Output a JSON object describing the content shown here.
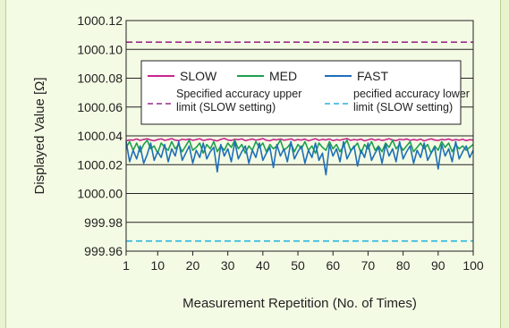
{
  "chart_data": {
    "type": "line",
    "xlabel": "Measurement Repetition (No. of Times)",
    "ylabel": "Displayed Value [Ω]",
    "xlim": [
      1,
      100
    ],
    "ylim": [
      999.96,
      1000.12
    ],
    "x_ticks": [
      1,
      10,
      20,
      30,
      40,
      50,
      60,
      70,
      80,
      90,
      100
    ],
    "y_ticks": [
      999.96,
      999.98,
      1000.0,
      1000.02,
      1000.04,
      1000.06,
      1000.08,
      1000.1,
      1000.12
    ],
    "y_tick_labels": [
      "999.96",
      "999.98",
      "1000.00",
      "1000.02",
      "1000.04",
      "1000.06",
      "1000.08",
      "1000.10",
      "1000.12"
    ],
    "grid": true,
    "legend_position": "top-right",
    "series": [
      {
        "name": "SLOW",
        "color": "#c8258f",
        "style": "solid",
        "values": [
          1000.0365,
          1000.0372,
          1000.037,
          1000.0378,
          1000.0368,
          1000.0375,
          1000.038,
          1000.0371,
          1000.0366,
          1000.0374,
          1000.0379,
          1000.0369,
          1000.0373,
          1000.0381,
          1000.037,
          1000.0367,
          1000.0376,
          1000.0372,
          1000.0378,
          1000.0369,
          1000.0374,
          1000.038,
          1000.0368,
          1000.0373,
          1000.0377,
          1000.037,
          1000.0365,
          1000.0375,
          1000.0382,
          1000.0371,
          1000.0368,
          1000.0376,
          1000.0373,
          1000.0379,
          1000.0367,
          1000.0372,
          1000.0378,
          1000.037,
          1000.0374,
          1000.0381,
          1000.0369,
          1000.0366,
          1000.0375,
          1000.0372,
          1000.0378,
          1000.037,
          1000.0373,
          1000.0379,
          1000.0368,
          1000.0374,
          1000.0371,
          1000.0377,
          1000.0366,
          1000.0373,
          1000.038,
          1000.0369,
          1000.0375,
          1000.0372,
          1000.0378,
          1000.0367,
          1000.0373,
          1000.037,
          1000.0376,
          1000.0381,
          1000.0369,
          1000.0374,
          1000.0371,
          1000.0377,
          1000.0366,
          1000.0372,
          1000.0379,
          1000.037,
          1000.0375,
          1000.0368,
          1000.0373,
          1000.038,
          1000.0371,
          1000.0367,
          1000.0376,
          1000.0372,
          1000.0378,
          1000.0369,
          1000.0374,
          1000.037,
          1000.0377,
          1000.0365,
          1000.0373,
          1000.0379,
          1000.0371,
          1000.0368,
          1000.0375,
          1000.0372,
          1000.0378,
          1000.0369,
          1000.0374,
          1000.037,
          1000.0376,
          1000.0367,
          1000.0373,
          1000.0371
        ]
      },
      {
        "name": "MED",
        "color": "#1f9e4f",
        "style": "solid",
        "values": [
          1000.032,
          1000.036,
          1000.03,
          1000.035,
          1000.029,
          1000.034,
          1000.037,
          1000.031,
          1000.033,
          1000.028,
          1000.035,
          1000.032,
          1000.03,
          1000.036,
          1000.031,
          1000.034,
          1000.029,
          1000.033,
          1000.037,
          1000.03,
          1000.032,
          1000.035,
          1000.028,
          1000.034,
          1000.031,
          1000.036,
          1000.029,
          1000.033,
          1000.03,
          1000.035,
          1000.032,
          1000.037,
          1000.031,
          1000.034,
          1000.028,
          1000.033,
          1000.03,
          1000.036,
          1000.032,
          1000.035,
          1000.029,
          1000.034,
          1000.031,
          1000.033,
          1000.037,
          1000.03,
          1000.032,
          1000.035,
          1000.029,
          1000.034,
          1000.031,
          1000.036,
          1000.03,
          1000.033,
          1000.028,
          1000.035,
          1000.032,
          1000.03,
          1000.036,
          1000.031,
          1000.034,
          1000.029,
          1000.033,
          1000.037,
          1000.03,
          1000.032,
          1000.035,
          1000.028,
          1000.034,
          1000.031,
          1000.036,
          1000.03,
          1000.033,
          1000.029,
          1000.035,
          1000.032,
          1000.037,
          1000.031,
          1000.034,
          1000.03,
          1000.033,
          1000.036,
          1000.029,
          1000.032,
          1000.035,
          1000.031,
          1000.034,
          1000.028,
          1000.033,
          1000.03,
          1000.036,
          1000.032,
          1000.035,
          1000.029,
          1000.034,
          1000.031,
          1000.033,
          1000.03,
          1000.032,
          1000.034
        ]
      },
      {
        "name": "FAST",
        "color": "#1f6fb8",
        "style": "solid",
        "values": [
          1000.036,
          1000.022,
          1000.03,
          1000.024,
          1000.033,
          1000.021,
          1000.027,
          1000.035,
          1000.023,
          1000.029,
          1000.025,
          1000.034,
          1000.022,
          1000.031,
          1000.026,
          1000.036,
          1000.023,
          1000.028,
          1000.033,
          1000.021,
          1000.03,
          1000.025,
          1000.035,
          1000.024,
          1000.029,
          1000.032,
          1000.015,
          1000.034,
          1000.026,
          1000.031,
          1000.022,
          1000.036,
          1000.024,
          1000.029,
          1000.033,
          1000.021,
          1000.03,
          1000.025,
          1000.035,
          1000.023,
          1000.028,
          1000.032,
          1000.018,
          1000.034,
          1000.026,
          1000.031,
          1000.022,
          1000.036,
          1000.024,
          1000.029,
          1000.033,
          1000.021,
          1000.03,
          1000.025,
          1000.035,
          1000.023,
          1000.028,
          1000.013,
          1000.034,
          1000.026,
          1000.031,
          1000.022,
          1000.036,
          1000.024,
          1000.029,
          1000.033,
          1000.019,
          1000.03,
          1000.025,
          1000.035,
          1000.023,
          1000.028,
          1000.032,
          1000.021,
          1000.034,
          1000.026,
          1000.031,
          1000.022,
          1000.036,
          1000.024,
          1000.029,
          1000.033,
          1000.021,
          1000.03,
          1000.025,
          1000.035,
          1000.023,
          1000.028,
          1000.032,
          1000.017,
          1000.034,
          1000.026,
          1000.031,
          1000.022,
          1000.036,
          1000.024,
          1000.029,
          1000.033,
          1000.025,
          1000.03
        ]
      },
      {
        "name": "Specified accuracy upper limit (SLOW setting)",
        "legend_lines": [
          "Specified accuracy upper",
          "limit (SLOW setting)"
        ],
        "color": "#9a2a8c",
        "style": "dashed",
        "values_constant": 1000.105
      },
      {
        "name": "pecified accuracy lower limit (SLOW setting)",
        "legend_lines": [
          "pecified accuracy lower",
          "limit (SLOW setting)"
        ],
        "color": "#27b4e0",
        "style": "dashed",
        "values_constant": 999.967
      }
    ]
  }
}
